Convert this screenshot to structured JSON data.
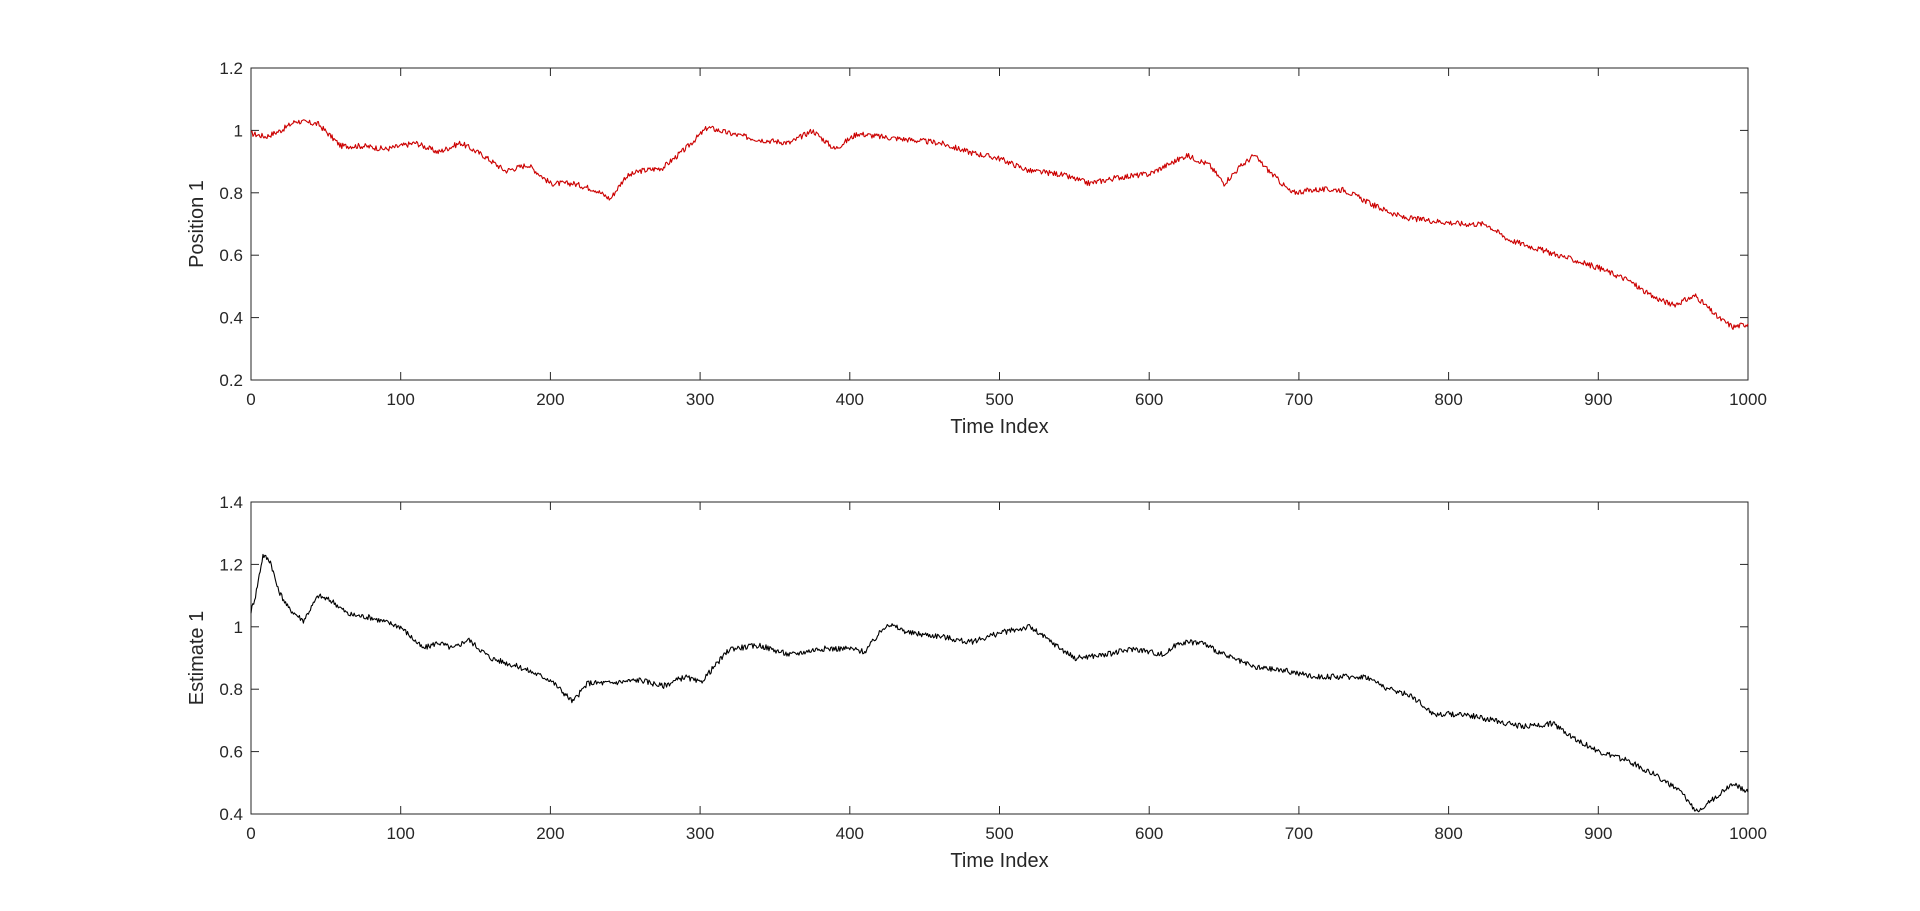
{
  "chart_data": [
    {
      "type": "line",
      "title": "",
      "xlabel": "Time Index",
      "ylabel": "Position 1",
      "xlim": [
        0,
        1000
      ],
      "ylim": [
        0.2,
        1.2
      ],
      "xticks": [
        "0",
        "100",
        "200",
        "300",
        "400",
        "500",
        "600",
        "700",
        "800",
        "900",
        "1000"
      ],
      "yticks": [
        "0.2",
        "0.4",
        "0.6",
        "0.8",
        "1",
        "1.2"
      ],
      "grid": false,
      "series": [
        {
          "color": "#cc0000",
          "x": [
            0,
            10,
            20,
            30,
            45,
            60,
            75,
            90,
            110,
            125,
            140,
            155,
            170,
            185,
            200,
            215,
            230,
            240,
            250,
            260,
            275,
            290,
            305,
            320,
            340,
            360,
            375,
            390,
            405,
            420,
            440,
            460,
            480,
            500,
            520,
            540,
            560,
            580,
            600,
            625,
            640,
            650,
            660,
            670,
            680,
            695,
            710,
            730,
            750,
            770,
            790,
            810,
            825,
            840,
            860,
            880,
            900,
            920,
            935,
            950,
            965,
            980,
            990,
            1000
          ],
          "y": [
            0.99,
            0.98,
            1.0,
            1.03,
            1.02,
            0.95,
            0.95,
            0.94,
            0.96,
            0.93,
            0.96,
            0.92,
            0.87,
            0.89,
            0.83,
            0.83,
            0.81,
            0.78,
            0.85,
            0.87,
            0.88,
            0.94,
            1.01,
            0.99,
            0.97,
            0.96,
            1.0,
            0.94,
            0.99,
            0.98,
            0.97,
            0.96,
            0.93,
            0.91,
            0.87,
            0.86,
            0.83,
            0.85,
            0.86,
            0.92,
            0.89,
            0.83,
            0.88,
            0.92,
            0.87,
            0.8,
            0.81,
            0.81,
            0.76,
            0.72,
            0.71,
            0.7,
            0.7,
            0.65,
            0.62,
            0.59,
            0.56,
            0.52,
            0.47,
            0.44,
            0.47,
            0.4,
            0.37,
            0.38
          ]
        }
      ]
    },
    {
      "type": "line",
      "title": "",
      "xlabel": "Time Index",
      "ylabel": "Estimate 1",
      "xlim": [
        0,
        1000
      ],
      "ylim": [
        0.4,
        1.4
      ],
      "xticks": [
        "0",
        "100",
        "200",
        "300",
        "400",
        "500",
        "600",
        "700",
        "800",
        "900",
        "1000"
      ],
      "yticks": [
        "0.4",
        "0.6",
        "0.8",
        "1",
        "1.2",
        "1.4"
      ],
      "grid": false,
      "series": [
        {
          "color": "#000000",
          "x": [
            0,
            3,
            8,
            13,
            18,
            25,
            35,
            45,
            55,
            65,
            80,
            100,
            115,
            125,
            135,
            145,
            160,
            180,
            200,
            215,
            225,
            240,
            260,
            275,
            290,
            300,
            320,
            340,
            360,
            380,
            400,
            410,
            425,
            440,
            460,
            480,
            500,
            520,
            535,
            550,
            570,
            590,
            610,
            620,
            635,
            650,
            670,
            690,
            710,
            725,
            745,
            760,
            775,
            790,
            810,
            830,
            850,
            870,
            885,
            900,
            920,
            940,
            955,
            965,
            975,
            990,
            1000
          ],
          "y": [
            1.05,
            1.1,
            1.23,
            1.21,
            1.12,
            1.06,
            1.02,
            1.1,
            1.08,
            1.04,
            1.03,
            1.0,
            0.93,
            0.95,
            0.93,
            0.96,
            0.9,
            0.87,
            0.83,
            0.76,
            0.82,
            0.82,
            0.83,
            0.81,
            0.84,
            0.82,
            0.93,
            0.94,
            0.91,
            0.93,
            0.93,
            0.92,
            1.01,
            0.98,
            0.97,
            0.95,
            0.98,
            1.0,
            0.95,
            0.9,
            0.91,
            0.93,
            0.91,
            0.95,
            0.95,
            0.91,
            0.87,
            0.86,
            0.84,
            0.84,
            0.84,
            0.8,
            0.78,
            0.72,
            0.72,
            0.7,
            0.68,
            0.69,
            0.64,
            0.6,
            0.57,
            0.52,
            0.47,
            0.41,
            0.44,
            0.5,
            0.47
          ]
        }
      ]
    }
  ]
}
